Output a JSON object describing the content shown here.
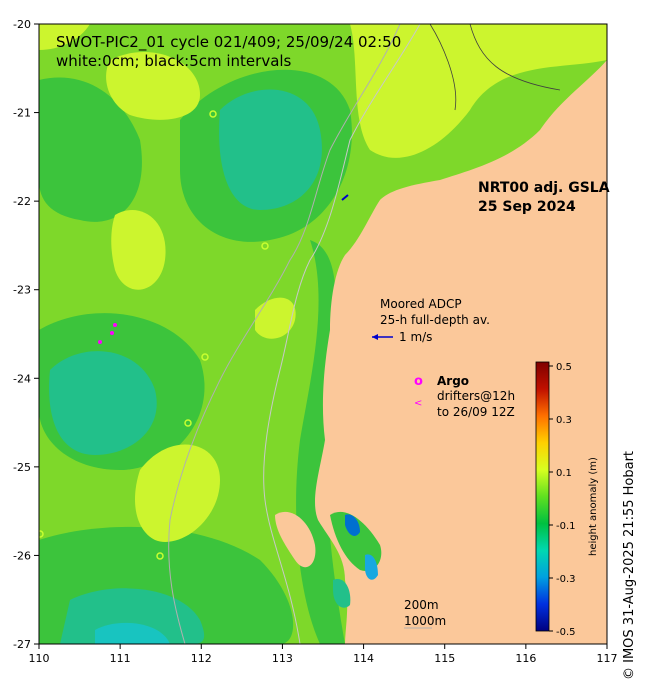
{
  "title_line1": "SWOT-PIC2_01 cycle 021/409; 25/09/24 02:50",
  "title_line2": "white:0cm; black:5cm intervals",
  "product_line1": "NRT00 adj. GSLA",
  "product_line2": "25 Sep 2024",
  "adcp": {
    "line1": "Moored ADCP",
    "line2": "25-h full-depth av.",
    "scale_label": "1 m/s"
  },
  "argo": {
    "marker": "o",
    "label": "Argo",
    "drifter_marker": "<",
    "drifters_line1": "drifters@12h",
    "drifters_line2": "to 26/09 12Z"
  },
  "contours_legend": {
    "line1": "200m",
    "line2": "1000m"
  },
  "colorbar": {
    "label": "height anomaly (m)",
    "ticks": [
      "0.5",
      "0.3",
      "0.1",
      "-0.1",
      "-0.3",
      "-0.5"
    ],
    "range": [
      -0.5,
      0.5
    ],
    "colors": [
      "#00007f",
      "#0030e0",
      "#00a0e0",
      "#00d8b0",
      "#00c040",
      "#60e020",
      "#d8ff20",
      "#ffd000",
      "#ff7000",
      "#c01000",
      "#7f0000"
    ]
  },
  "x_axis": {
    "ticks": [
      "110",
      "111",
      "112",
      "113",
      "114",
      "115",
      "116",
      "117"
    ]
  },
  "y_axis": {
    "ticks": [
      "-20",
      "-21",
      "-22",
      "-23",
      "-24",
      "-25",
      "-26",
      "-27"
    ]
  },
  "credit": "© IMOS 31-Aug-2025 21:55 Hobart",
  "colors": {
    "land": "#fbc89a",
    "ocean_base": "#7ed82a",
    "bright_yellow_green": "#ccf52e",
    "green": "#3cc43c",
    "teal": "#22c08a",
    "cyan": "#18c4c0",
    "argo": "#ff00ff",
    "adcp_arrow": "#0000cc"
  }
}
